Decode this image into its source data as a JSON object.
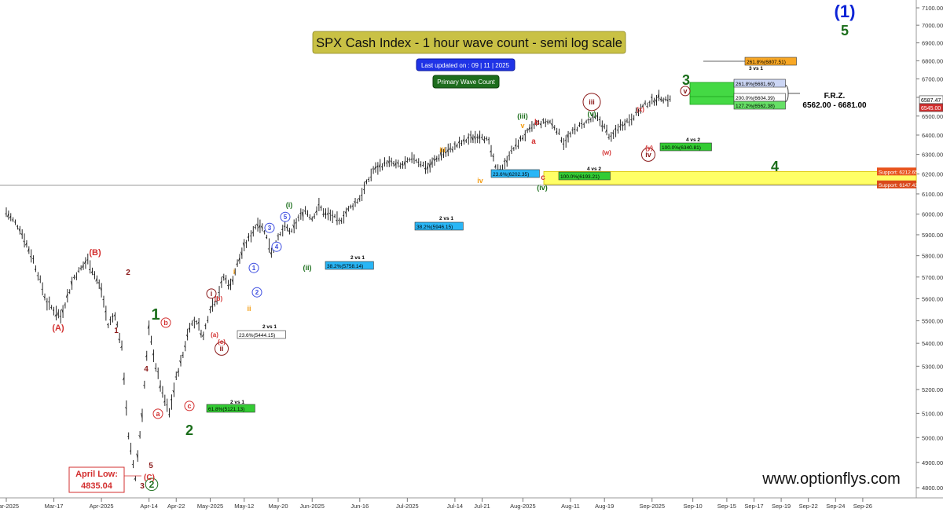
{
  "chart_data": {
    "type": "ohlc",
    "title": "SPX Cash Index - 1 hour wave count - semi log scale",
    "badges": {
      "updated": "Last updated on : 09 | 11 | 2025",
      "count": "Primary Wave Count"
    },
    "watermark": "www.optionflys.com",
    "y_axis": {
      "scale": "log",
      "ylim": [
        4760,
        7160
      ],
      "ticks": [
        4800,
        4900,
        5000,
        5100,
        5200,
        5300,
        5400,
        5500,
        5600,
        5700,
        5800,
        5900,
        6000,
        6100,
        6200,
        6300,
        6400,
        6500,
        6600,
        6700,
        6800,
        6900,
        7000,
        7100
      ],
      "tick_labels": [
        "4800.00",
        "4900.00",
        "5000.00",
        "5100.00",
        "5200.00",
        "5300.00",
        "5400.00",
        "5500.00",
        "5600.00",
        "5700.00",
        "5800.00",
        "5900.00",
        "6000.00",
        "6100.00",
        "6200.00",
        "6300.00",
        "6400.00",
        "6500.00",
        "6600.00",
        "6700.00",
        "6800.00",
        "6900.00",
        "7000.00",
        "7100.00"
      ],
      "price_flags": [
        {
          "value": 6587.47,
          "label": "6587.47",
          "color": "#ffffff"
        },
        {
          "value": 6545.0,
          "label": "6545.00",
          "color": "#d32f2f"
        }
      ]
    },
    "x_axis": {
      "tick_labels": [
        "Mar-2025",
        "Mar-17",
        "Apr-2025",
        "Apr-14",
        "Apr-22",
        "May-2025",
        "May-12",
        "May-20",
        "Jun-2025",
        "Jun-16",
        "Jul-2025",
        "Jul-14",
        "Jul-21",
        "Aug-2025",
        "Aug-11",
        "Aug-19",
        "Sep-2025",
        "Sep-10",
        "Sep-15",
        "Sep-17",
        "Sep-19",
        "Sep-22",
        "Sep-24",
        "Sep-26"
      ],
      "tick_index": [
        0,
        7,
        14,
        21,
        25,
        30,
        35,
        40,
        45,
        52,
        59,
        66,
        70,
        76,
        83,
        88,
        95,
        101,
        106,
        110,
        114,
        118,
        122,
        126
      ]
    },
    "price_path": [
      [
        0,
        6010
      ],
      [
        2,
        5930
      ],
      [
        4,
        5780
      ],
      [
        6,
        5580
      ],
      [
        8,
        5520
      ],
      [
        10,
        5700
      ],
      [
        12,
        5780
      ],
      [
        14,
        5640
      ],
      [
        15,
        5480
      ],
      [
        16,
        5530
      ],
      [
        17,
        5380
      ],
      [
        18,
        5000
      ],
      [
        19,
        4840
      ],
      [
        20,
        5100
      ],
      [
        21,
        5460
      ],
      [
        22,
        5300
      ],
      [
        23,
        5180
      ],
      [
        24,
        5100
      ],
      [
        25,
        5250
      ],
      [
        26,
        5350
      ],
      [
        27,
        5480
      ],
      [
        28,
        5500
      ],
      [
        29,
        5430
      ],
      [
        30,
        5560
      ],
      [
        31,
        5600
      ],
      [
        32,
        5700
      ],
      [
        33,
        5660
      ],
      [
        34,
        5760
      ],
      [
        35,
        5840
      ],
      [
        36,
        5900
      ],
      [
        37,
        5960
      ],
      [
        38,
        5920
      ],
      [
        39,
        5820
      ],
      [
        40,
        5880
      ],
      [
        41,
        5940
      ],
      [
        42,
        5910
      ],
      [
        43,
        5980
      ],
      [
        44,
        6020
      ],
      [
        45,
        5980
      ],
      [
        46,
        6040
      ],
      [
        47,
        6000
      ],
      [
        48,
        5990
      ],
      [
        49,
        5960
      ],
      [
        50,
        6010
      ],
      [
        52,
        6080
      ],
      [
        54,
        6220
      ],
      [
        56,
        6260
      ],
      [
        58,
        6240
      ],
      [
        60,
        6280
      ],
      [
        62,
        6230
      ],
      [
        64,
        6300
      ],
      [
        66,
        6340
      ],
      [
        68,
        6380
      ],
      [
        70,
        6400
      ],
      [
        71,
        6360
      ],
      [
        72,
        6230
      ],
      [
        73,
        6220
      ],
      [
        74,
        6300
      ],
      [
        76,
        6390
      ],
      [
        78,
        6460
      ],
      [
        80,
        6470
      ],
      [
        81,
        6430
      ],
      [
        82,
        6360
      ],
      [
        84,
        6440
      ],
      [
        86,
        6480
      ],
      [
        87,
        6490
      ],
      [
        88,
        6440
      ],
      [
        89,
        6380
      ],
      [
        90,
        6440
      ],
      [
        92,
        6490
      ],
      [
        94,
        6560
      ],
      [
        95,
        6580
      ],
      [
        96,
        6600
      ],
      [
        97,
        6590
      ],
      [
        98,
        6587
      ]
    ],
    "fib_levels": [
      {
        "label": "261.8%(6807.51)",
        "value": 6807.51,
        "color": "#f9a825"
      },
      {
        "label": "261.8%(6681.60)",
        "value": 6681.6,
        "color": "#ccd6f5"
      },
      {
        "label": "200.0%(6604.39)",
        "value": 6604.39,
        "color": "#ffffff"
      },
      {
        "label": "127.2%(6562.38)",
        "value": 6562.38,
        "color": "#66e066"
      },
      {
        "label": "100.0%(6340.81)",
        "value": 6340.81,
        "color": "#33cc33"
      },
      {
        "label": "100.0%(6193.21)",
        "value": 6193.21,
        "color": "#33cc33"
      },
      {
        "label": "23.6%(6202.35)",
        "value": 6202.35,
        "color": "#29b6f6"
      },
      {
        "label": "38.2%(5946.15)",
        "value": 5946.15,
        "color": "#29b6f6"
      },
      {
        "label": "38.2%(5758.14)",
        "value": 5758.14,
        "color": "#29b6f6"
      },
      {
        "label": "23.6%(5444.15)",
        "value": 5444.15,
        "color": "#ffffff"
      },
      {
        "label": "61.8%(5121.13)",
        "value": 5121.13,
        "color": "#33cc33"
      }
    ],
    "ratio_labels": [
      "3 vs 1",
      "4 vs 2",
      "4 vs 2",
      "2 vs 1",
      "2 vs 1",
      "2 vs 1",
      "2 vs 1"
    ],
    "supports": [
      {
        "label": "Support: 6212.65",
        "value": 6212.65
      },
      {
        "label": "Support: 6147.43",
        "value": 6147.43
      }
    ],
    "frz": {
      "title": "F.R.Z.",
      "range": "6562.00 - 6681.00",
      "low": 6562,
      "high": 6681
    },
    "april_low": {
      "title": "April Low:",
      "value": "4835.04"
    },
    "wave_labels": [
      {
        "text": "(1)",
        "color": "#0d24d6",
        "style": "big"
      },
      {
        "text": "5",
        "color": "#1b6e1b",
        "style": "big"
      },
      {
        "text": "3",
        "color": "#1b6e1b",
        "style": "big"
      },
      {
        "text": "4",
        "color": "#1b6e1b",
        "style": "big"
      },
      {
        "text": "1",
        "color": "#1b6e1b",
        "style": "big"
      },
      {
        "text": "2",
        "color": "#1b6e1b",
        "style": "big"
      },
      {
        "text": "2",
        "color": "#1b6e1b",
        "style": "circle"
      },
      {
        "text": "(B)",
        "color": "#d32f2f",
        "style": "plain"
      },
      {
        "text": "(A)",
        "color": "#d32f2f",
        "style": "plain"
      },
      {
        "text": "(C)",
        "color": "#d32f2f",
        "style": "plain"
      },
      {
        "text": "1",
        "color": "#8b1a1a",
        "style": "plain"
      },
      {
        "text": "2",
        "color": "#8b1a1a",
        "style": "plain"
      },
      {
        "text": "3",
        "color": "#8b1a1a",
        "style": "plain"
      },
      {
        "text": "4",
        "color": "#8b1a1a",
        "style": "plain"
      },
      {
        "text": "5",
        "color": "#8b1a1a",
        "style": "plain"
      },
      {
        "text": "a",
        "color": "#d32f2f",
        "style": "circle"
      },
      {
        "text": "b",
        "color": "#d32f2f",
        "style": "circle"
      },
      {
        "text": "c",
        "color": "#d32f2f",
        "style": "circle"
      },
      {
        "text": "i",
        "color": "#8b1a1a",
        "style": "circle"
      },
      {
        "text": "ii",
        "color": "#8b1a1a",
        "style": "circle"
      },
      {
        "text": "iii",
        "color": "#8b1a1a",
        "style": "circle"
      },
      {
        "text": "iv",
        "color": "#8b1a1a",
        "style": "circle"
      },
      {
        "text": "v",
        "color": "#8b1a1a",
        "style": "circle"
      },
      {
        "text": "(a)",
        "color": "#d32f2f",
        "style": "plain"
      },
      {
        "text": "(b)",
        "color": "#d32f2f",
        "style": "plain"
      },
      {
        "text": "(c)",
        "color": "#d32f2f",
        "style": "plain"
      },
      {
        "text": "(w)",
        "color": "#d32f2f",
        "style": "plain"
      },
      {
        "text": "(x)",
        "color": "#d32f2f",
        "style": "plain"
      },
      {
        "text": "(y)",
        "color": "#d32f2f",
        "style": "plain"
      },
      {
        "text": "(i)",
        "color": "#1b6e1b",
        "style": "plain"
      },
      {
        "text": "(ii)",
        "color": "#1b6e1b",
        "style": "plain"
      },
      {
        "text": "(iii)",
        "color": "#1b6e1b",
        "style": "plain"
      },
      {
        "text": "(iv)",
        "color": "#1b6e1b",
        "style": "plain"
      },
      {
        "text": "(v)",
        "color": "#1b6e1b",
        "style": "plain"
      },
      {
        "text": "i",
        "color": "#f39c12",
        "style": "plain"
      },
      {
        "text": "ii",
        "color": "#f39c12",
        "style": "plain"
      },
      {
        "text": "iii",
        "color": "#f39c12",
        "style": "plain"
      },
      {
        "text": "iv",
        "color": "#f39c12",
        "style": "plain"
      },
      {
        "text": "v",
        "color": "#f39c12",
        "style": "plain"
      },
      {
        "text": "a",
        "color": "#d32f2f",
        "style": "plain"
      },
      {
        "text": "b",
        "color": "#d32f2f",
        "style": "plain"
      },
      {
        "text": "c",
        "color": "#d32f2f",
        "style": "plain"
      },
      {
        "text": "1",
        "color": "#3b4ce0",
        "style": "circle"
      },
      {
        "text": "2",
        "color": "#3b4ce0",
        "style": "circle"
      },
      {
        "text": "3",
        "color": "#3b4ce0",
        "style": "circle"
      },
      {
        "text": "4",
        "color": "#3b4ce0",
        "style": "circle"
      },
      {
        "text": "5",
        "color": "#3b4ce0",
        "style": "circle"
      }
    ]
  }
}
